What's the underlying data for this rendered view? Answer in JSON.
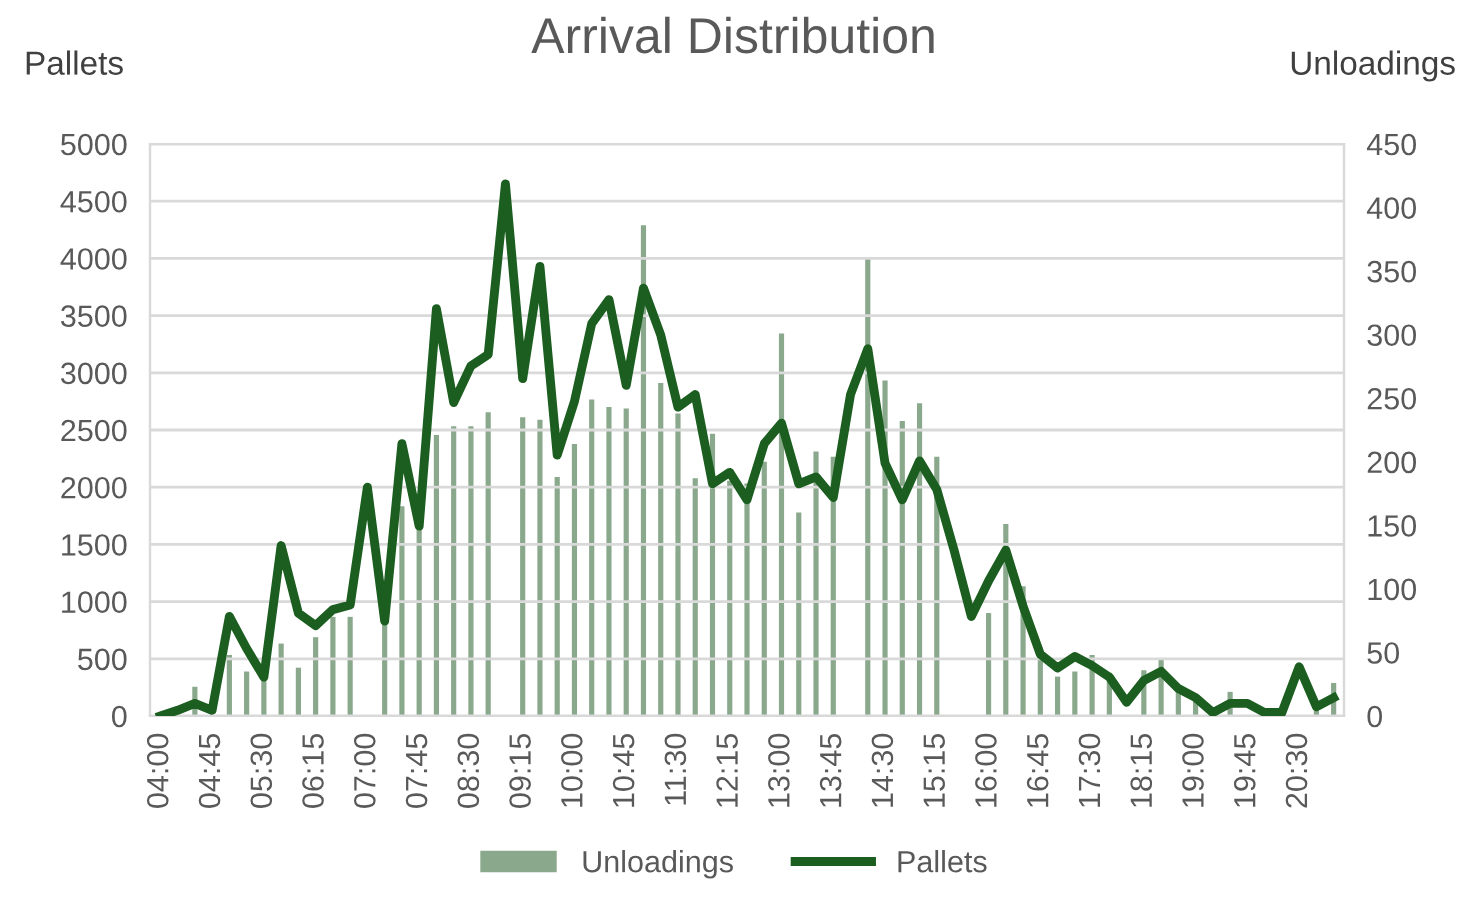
{
  "chart_data": {
    "type": "bar",
    "title": "Arrival Distribution",
    "ylabel": "Pallets",
    "y2label": "Unloadings",
    "categories": [
      "04:00",
      null,
      null,
      "04:45",
      null,
      null,
      "05:30",
      null,
      null,
      "06:15",
      null,
      null,
      "07:00",
      null,
      null,
      "07:45",
      null,
      null,
      "08:30",
      null,
      null,
      "09:15",
      null,
      null,
      "10:00",
      null,
      null,
      "10:45",
      null,
      null,
      "11:30",
      null,
      null,
      "12:15",
      null,
      null,
      "13:00",
      null,
      null,
      "13:45",
      null,
      null,
      "14:30",
      null,
      null,
      "15:15",
      null,
      null,
      "16:00",
      null,
      null,
      "16:45",
      null,
      null,
      "17:30",
      null,
      null,
      "18:15",
      null,
      null,
      "19:00",
      null,
      null,
      "19:45",
      null,
      null,
      "20:30",
      null,
      null
    ],
    "series": [
      {
        "name": "Unloadings",
        "axis": "y2",
        "color": "#8aa88c",
        "values": [
          0,
          0,
          23,
          0,
          48,
          35,
          29,
          57,
          38,
          62,
          78,
          78,
          null,
          75,
          165,
          175,
          221,
          228,
          228,
          239,
          null,
          235,
          233,
          188,
          214,
          249,
          243,
          242,
          386,
          262,
          238,
          187,
          222,
          185,
          183,
          200,
          301,
          160,
          208,
          204,
          null,
          361,
          264,
          232,
          246,
          204,
          null,
          null,
          81,
          151,
          102,
          54,
          31,
          35,
          48,
          34,
          null,
          36,
          45,
          19,
          16,
          2,
          19,
          null,
          2,
          1,
          null,
          4,
          26
        ]
      },
      {
        "name": "Pallets",
        "type": "line",
        "axis": "y",
        "color": "#1b5e20",
        "values": [
          0,
          50,
          110,
          50,
          870,
          590,
          340,
          1490,
          900,
          790,
          930,
          970,
          2000,
          830,
          2380,
          1660,
          3560,
          2740,
          3060,
          3160,
          4650,
          2950,
          3930,
          2280,
          2750,
          3430,
          3640,
          2890,
          3740,
          3330,
          2700,
          2810,
          2030,
          2130,
          1890,
          2380,
          2560,
          2030,
          2090,
          1910,
          2810,
          3210,
          2210,
          1890,
          2230,
          1980,
          1450,
          870,
          1180,
          1450,
          960,
          540,
          420,
          520,
          440,
          340,
          120,
          310,
          390,
          240,
          160,
          30,
          110,
          110,
          30,
          30,
          430,
          80,
          160
        ]
      }
    ],
    "ylim": [
      0,
      5000
    ],
    "yticks": [
      0,
      500,
      1000,
      1500,
      2000,
      2500,
      3000,
      3500,
      4000,
      4500,
      5000
    ],
    "y2lim": [
      0,
      450
    ],
    "y2ticks": [
      0,
      50,
      100,
      150,
      200,
      250,
      300,
      350,
      400,
      450
    ],
    "grid": "y",
    "legend": "bottom",
    "marker": "none",
    "line_style": "solid"
  }
}
